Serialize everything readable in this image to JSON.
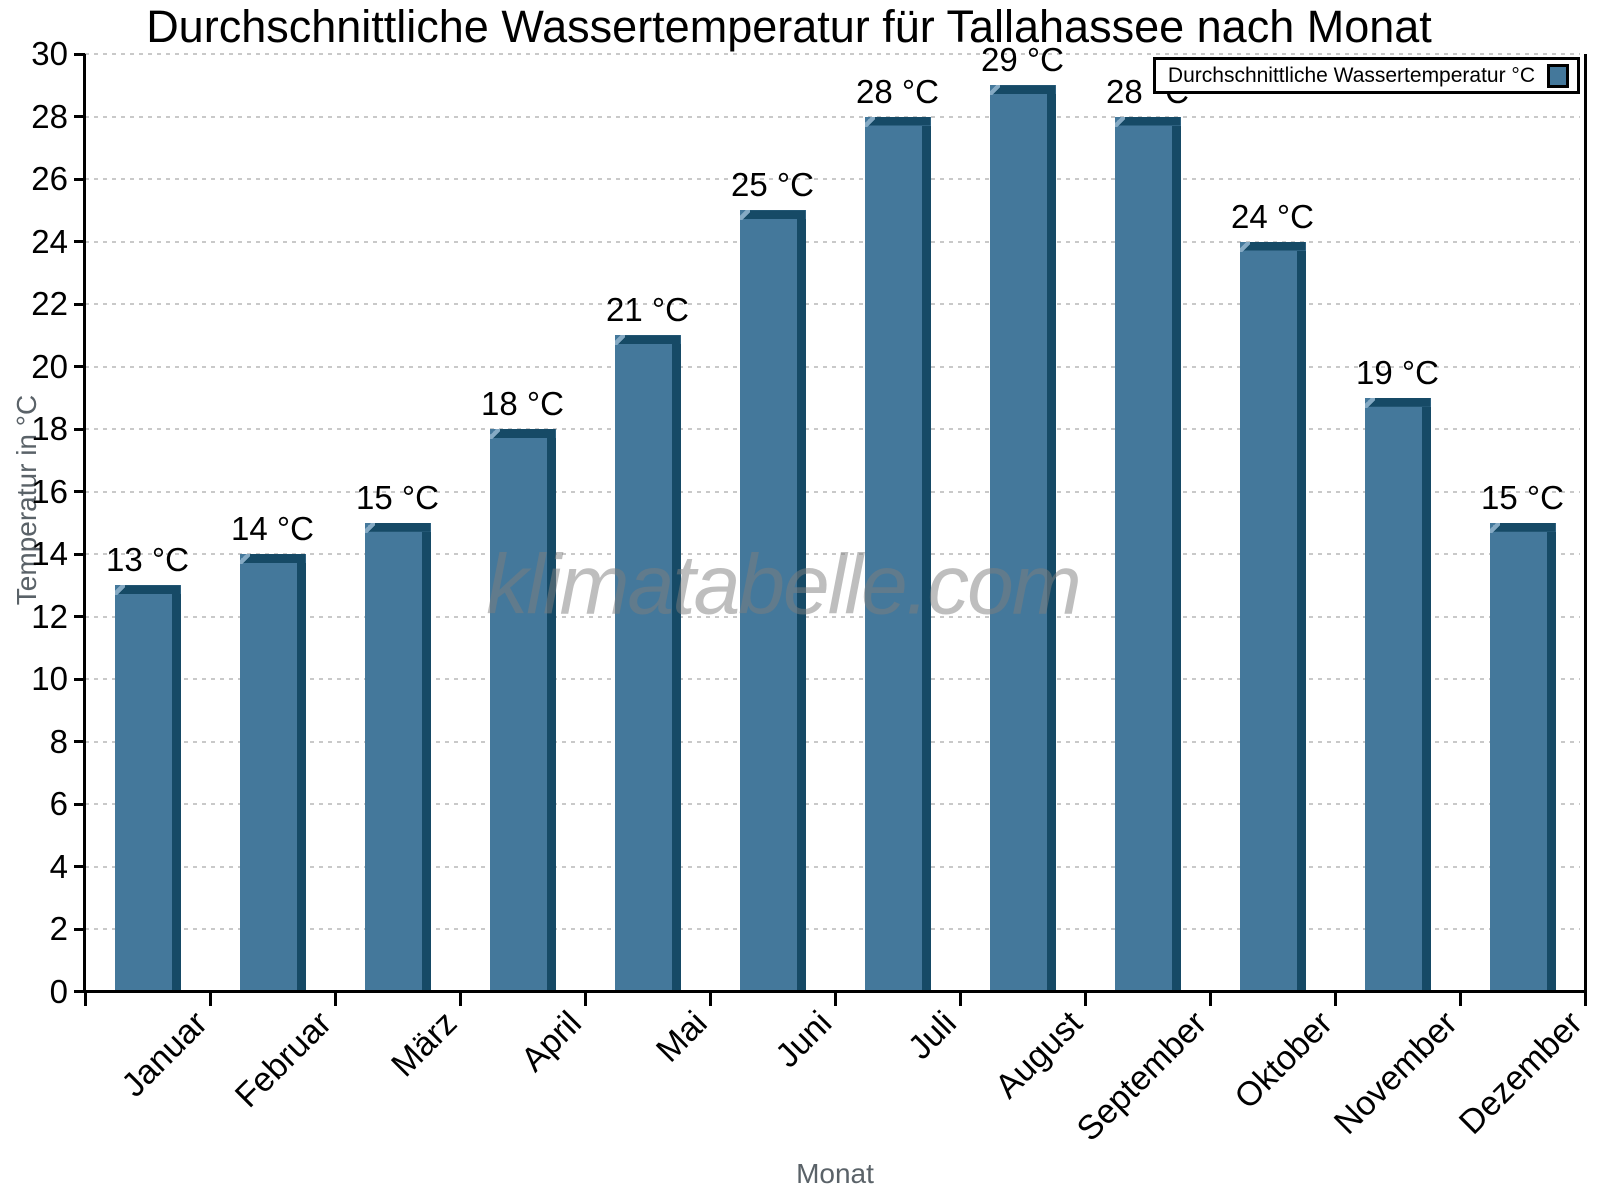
{
  "watermark": "klimatabelle.com",
  "chart_data": {
    "type": "bar",
    "title": "Durchschnittliche Wassertemperatur für Tallahassee nach Monat",
    "xlabel": "Monat",
    "ylabel": "Temperatur in °C",
    "legend_label": "Durchschnittliche Wassertemperatur °C",
    "legend_position": "top-right",
    "categories": [
      "Januar",
      "Februar",
      "März",
      "April",
      "Mai",
      "Juni",
      "Juli",
      "August",
      "September",
      "Oktober",
      "November",
      "Dezember"
    ],
    "values": [
      13,
      14,
      15,
      18,
      21,
      25,
      28,
      29,
      28,
      24,
      19,
      15
    ],
    "value_label_suffix": " °C",
    "ylim": [
      0,
      30
    ],
    "yticks": [
      0,
      2,
      4,
      6,
      8,
      10,
      12,
      14,
      16,
      18,
      20,
      22,
      24,
      26,
      28,
      30
    ],
    "grid": "horizontal-dotted",
    "colors": {
      "bar_face": "#44789B",
      "bar_edge": "#164A66",
      "bar_bevel": "#85AAC4",
      "grid": "#C9C9C9",
      "axis": "#000000",
      "axis_title_text": "#5A6268",
      "watermark_text": "#7D7D7D"
    }
  }
}
